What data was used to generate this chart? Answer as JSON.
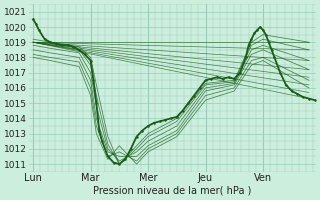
{
  "bg_color": "#cceedd",
  "grid_color": "#99ccbb",
  "line_color": "#1a5c1a",
  "ylim": [
    1010.5,
    1021.5
  ],
  "yticks": [
    1011,
    1012,
    1013,
    1014,
    1015,
    1016,
    1017,
    1018,
    1019,
    1020,
    1021
  ],
  "xtick_labels": [
    "Lun",
    "Mar",
    "Mer",
    "Jeu",
    "Ven"
  ],
  "xlabel": "Pression niveau de la mer( hPa )",
  "figsize": [
    3.2,
    2.0
  ],
  "dpi": 100,
  "main_x": [
    0,
    0.05,
    0.1,
    0.2,
    0.3,
    0.4,
    0.5,
    0.6,
    0.7,
    0.8,
    0.9,
    1.0,
    1.05,
    1.1,
    1.15,
    1.2,
    1.3,
    1.4,
    1.5,
    1.6,
    1.7,
    1.8,
    1.9,
    2.0,
    2.1,
    2.2,
    2.3,
    2.4,
    2.5,
    2.6,
    2.7,
    2.8,
    2.9,
    3.0,
    3.1,
    3.2,
    3.3,
    3.4,
    3.5,
    3.6,
    3.7,
    3.75,
    3.8,
    3.85,
    3.9,
    3.95,
    4.0,
    4.05,
    4.1,
    4.15,
    4.2,
    4.3,
    4.4,
    4.5,
    4.6,
    4.7,
    4.8,
    4.9
  ],
  "main_y": [
    1020.5,
    1020.2,
    1019.8,
    1019.2,
    1019.0,
    1018.9,
    1018.8,
    1018.8,
    1018.7,
    1018.5,
    1018.2,
    1017.8,
    1016.5,
    1015.0,
    1013.2,
    1012.5,
    1011.5,
    1011.1,
    1011.0,
    1011.3,
    1012.0,
    1012.8,
    1013.2,
    1013.5,
    1013.7,
    1013.8,
    1013.9,
    1014.0,
    1014.1,
    1014.5,
    1015.0,
    1015.5,
    1016.0,
    1016.5,
    1016.6,
    1016.7,
    1016.6,
    1016.7,
    1016.6,
    1017.0,
    1018.0,
    1018.8,
    1019.2,
    1019.6,
    1019.8,
    1020.0,
    1019.8,
    1019.5,
    1019.0,
    1018.5,
    1018.0,
    1017.0,
    1016.2,
    1015.8,
    1015.6,
    1015.4,
    1015.3,
    1015.2
  ],
  "forecast_lines": [
    {
      "x": [
        0.0,
        4.8
      ],
      "y": [
        1019.0,
        1019.0
      ]
    },
    {
      "x": [
        0.0,
        4.8
      ],
      "y": [
        1019.0,
        1018.5
      ]
    },
    {
      "x": [
        0.0,
        4.8
      ],
      "y": [
        1019.0,
        1017.8
      ]
    },
    {
      "x": [
        0.0,
        4.8
      ],
      "y": [
        1019.0,
        1017.2
      ]
    },
    {
      "x": [
        0.0,
        4.8
      ],
      "y": [
        1019.0,
        1016.7
      ]
    },
    {
      "x": [
        0.0,
        4.8
      ],
      "y": [
        1019.0,
        1016.2
      ]
    },
    {
      "x": [
        0.0,
        4.8
      ],
      "y": [
        1019.0,
        1015.7
      ]
    },
    {
      "x": [
        0.0,
        4.8
      ],
      "y": [
        1019.0,
        1015.3
      ]
    }
  ],
  "ensemble_lines": [
    {
      "xk": [
        0.0,
        0.3,
        0.8,
        1.0,
        1.1,
        1.3,
        1.5,
        1.8,
        2.0,
        2.5,
        3.0,
        3.5,
        3.8,
        4.0,
        4.8
      ],
      "yk": [
        1019.2,
        1019.0,
        1018.7,
        1018.0,
        1016.2,
        1012.8,
        1011.0,
        1012.2,
        1013.0,
        1014.0,
        1016.3,
        1016.5,
        1019.0,
        1019.5,
        1019.0
      ]
    },
    {
      "xk": [
        0.0,
        0.3,
        0.8,
        1.0,
        1.1,
        1.3,
        1.5,
        1.8,
        2.0,
        2.5,
        3.0,
        3.5,
        3.8,
        4.0,
        4.8
      ],
      "yk": [
        1019.0,
        1018.8,
        1018.5,
        1017.5,
        1015.5,
        1012.3,
        1011.0,
        1012.0,
        1012.8,
        1013.8,
        1016.2,
        1016.4,
        1018.8,
        1019.2,
        1018.5
      ]
    },
    {
      "xk": [
        0.0,
        0.3,
        0.8,
        1.0,
        1.1,
        1.3,
        1.5,
        1.8,
        2.0,
        2.5,
        3.0,
        3.5,
        3.8,
        4.0,
        4.8
      ],
      "yk": [
        1018.8,
        1018.6,
        1018.3,
        1017.0,
        1014.8,
        1012.0,
        1011.2,
        1011.8,
        1012.5,
        1013.5,
        1016.0,
        1016.3,
        1018.5,
        1018.8,
        1017.8
      ]
    },
    {
      "xk": [
        0.0,
        0.3,
        0.8,
        1.0,
        1.1,
        1.3,
        1.5,
        1.8,
        2.0,
        2.5,
        3.0,
        3.5,
        3.8,
        4.0,
        4.8
      ],
      "yk": [
        1018.5,
        1018.3,
        1018.0,
        1016.5,
        1014.0,
        1011.8,
        1011.5,
        1011.5,
        1012.2,
        1013.2,
        1015.8,
        1016.2,
        1018.2,
        1018.5,
        1017.2
      ]
    },
    {
      "xk": [
        0.0,
        0.3,
        0.8,
        1.0,
        1.1,
        1.3,
        1.5,
        1.8,
        2.0,
        2.5,
        3.0,
        3.5,
        3.8,
        4.0,
        4.8
      ],
      "yk": [
        1018.2,
        1018.0,
        1017.7,
        1016.0,
        1013.5,
        1011.5,
        1011.8,
        1011.2,
        1012.0,
        1013.0,
        1015.5,
        1016.0,
        1017.8,
        1018.0,
        1016.5
      ]
    },
    {
      "xk": [
        0.0,
        0.3,
        0.8,
        1.0,
        1.1,
        1.3,
        1.5,
        1.8,
        2.0,
        2.5,
        3.0,
        3.5,
        3.8,
        4.0,
        4.8
      ],
      "yk": [
        1018.0,
        1017.8,
        1017.4,
        1015.5,
        1013.0,
        1011.3,
        1012.2,
        1011.0,
        1011.8,
        1012.8,
        1015.2,
        1015.8,
        1017.5,
        1017.8,
        1016.0
      ]
    }
  ]
}
